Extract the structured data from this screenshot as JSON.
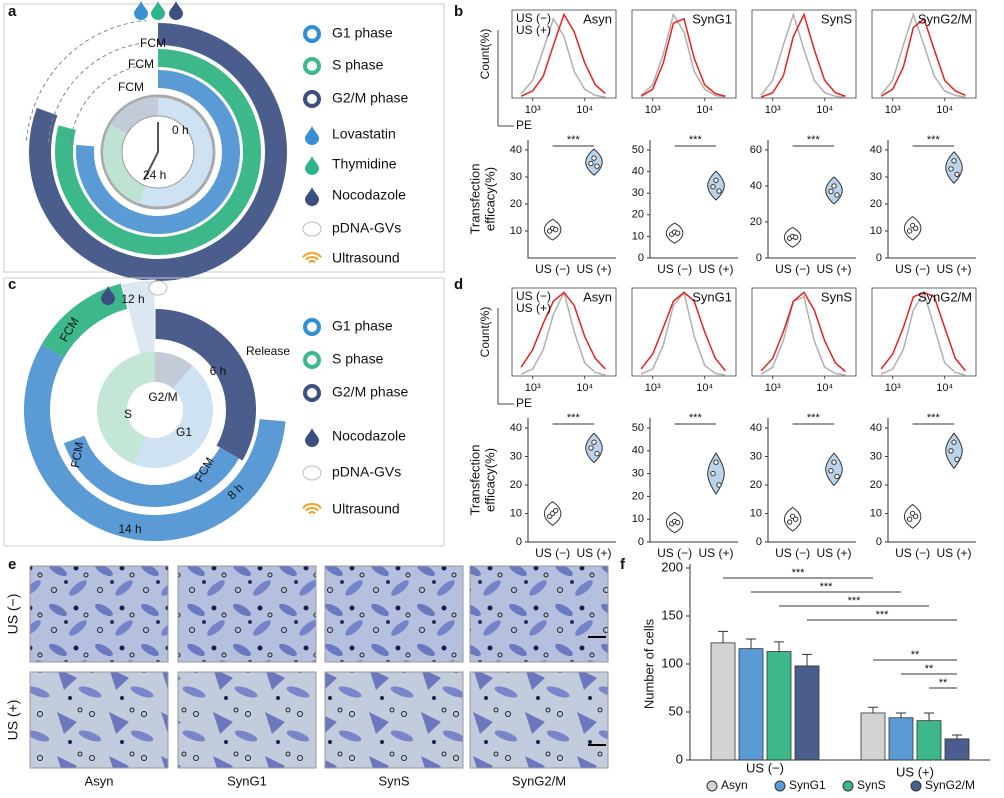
{
  "panel_labels": [
    "a",
    "b",
    "c",
    "d",
    "e",
    "f"
  ],
  "panel_a": {
    "legend": [
      "G1 phase",
      "S phase",
      "G2/M phase",
      "Lovastatin",
      "Thymidine",
      "Nocodazole",
      "pDNA-GVs",
      "Ultrasound"
    ],
    "labels": [
      "FCM",
      "FCM",
      "FCM",
      "0 h",
      "24 h"
    ]
  },
  "panel_c": {
    "legend": [
      "G1 phase",
      "S phase",
      "G2/M phase",
      "Nocodazole",
      "pDNA-GVs",
      "Ultrasound"
    ],
    "labels": [
      "12 h",
      "FCM",
      "Release",
      "6 h",
      "G2/M",
      "S",
      "G1",
      "FCM",
      "FCM",
      "8 h",
      "14 h"
    ]
  },
  "panel_e": {
    "rows": [
      "US (−)",
      "US (+)"
    ],
    "columns": [
      "Asyn",
      "SynG1",
      "SynS",
      "SynG2/M"
    ]
  },
  "chart_data": [
    {
      "type": "histogram",
      "title": "Asyn",
      "ylabel": "Count(%)",
      "xlabel": "PE",
      "xscale": "log",
      "x": [
        600,
        1000,
        1600,
        2500,
        4000,
        6300,
        10000,
        16000,
        25000
      ],
      "xlim": [
        400,
        40000
      ],
      "xticks": [
        {
          "value": 1000,
          "label": "10³"
        },
        {
          "value": 10000,
          "label": "10⁴"
        }
      ],
      "ylim": [
        0,
        100
      ],
      "series": [
        {
          "name": "US (−)",
          "color": "#b0b0b0",
          "values": [
            5,
            20,
            55,
            90,
            70,
            30,
            10,
            3,
            1
          ]
        },
        {
          "name": "US (+)",
          "color": "#e8211d",
          "values": [
            2,
            8,
            25,
            60,
            95,
            75,
            40,
            15,
            5
          ]
        }
      ]
    },
    {
      "type": "histogram",
      "title": "SynG1",
      "xscale": "log",
      "x": [
        600,
        1000,
        1600,
        2500,
        4000,
        6300,
        10000,
        16000,
        25000
      ],
      "xlim": [
        400,
        40000
      ],
      "xticks": [
        {
          "value": 1000,
          "label": "10³"
        },
        {
          "value": 10000,
          "label": "10⁴"
        }
      ],
      "ylim": [
        0,
        100
      ],
      "series": [
        {
          "color": "#b0b0b0",
          "values": [
            3,
            15,
            50,
            95,
            75,
            30,
            10,
            3,
            1
          ]
        },
        {
          "color": "#e8211d",
          "values": [
            2,
            10,
            40,
            85,
            90,
            45,
            15,
            5,
            2
          ]
        }
      ]
    },
    {
      "type": "histogram",
      "title": "SynS",
      "xscale": "log",
      "x": [
        600,
        1000,
        1600,
        2500,
        4000,
        6300,
        10000,
        16000,
        25000
      ],
      "xlim": [
        400,
        40000
      ],
      "xticks": [
        {
          "value": 1000,
          "label": "10³"
        },
        {
          "value": 10000,
          "label": "10⁴"
        }
      ],
      "ylim": [
        0,
        100
      ],
      "series": [
        {
          "color": "#b0b0b0",
          "values": [
            3,
            20,
            60,
            95,
            55,
            20,
            6,
            2,
            1
          ]
        },
        {
          "color": "#e8211d",
          "values": [
            1,
            6,
            25,
            70,
            95,
            55,
            20,
            6,
            2
          ]
        }
      ]
    },
    {
      "type": "histogram",
      "title": "SynG2/M",
      "xscale": "log",
      "x": [
        600,
        1000,
        1600,
        2500,
        4000,
        6300,
        10000,
        16000,
        25000
      ],
      "xlim": [
        400,
        40000
      ],
      "xticks": [
        {
          "value": 1000,
          "label": "10³"
        },
        {
          "value": 10000,
          "label": "10⁴"
        }
      ],
      "ylim": [
        0,
        100
      ],
      "series": [
        {
          "color": "#b0b0b0",
          "values": [
            4,
            20,
            60,
            95,
            60,
            25,
            8,
            3,
            1
          ]
        },
        {
          "color": "#e8211d",
          "values": [
            2,
            10,
            35,
            80,
            90,
            55,
            20,
            8,
            3
          ]
        }
      ]
    },
    {
      "type": "violin",
      "ylabel": [
        "Transfection",
        "efficacy(%)"
      ],
      "categories": [
        "US (−)",
        "US (+)"
      ],
      "colors": [
        "#ffffff",
        "#b9d4ec"
      ],
      "values": [
        [
          10,
          11,
          10.5
        ],
        [
          35,
          37,
          34
        ]
      ],
      "ylim": [
        0,
        40
      ],
      "yticks": [
        10,
        20,
        30,
        40
      ],
      "annotation": "***"
    },
    {
      "type": "violin",
      "categories": [
        "US (−)",
        "US (+)"
      ],
      "colors": [
        "#ffffff",
        "#b9d4ec"
      ],
      "values": [
        [
          11,
          12,
          11.5
        ],
        [
          33,
          36,
          31
        ]
      ],
      "ylim": [
        0,
        50
      ],
      "yticks": [
        0,
        10,
        20,
        30,
        40,
        50
      ],
      "annotation": "***"
    },
    {
      "type": "violin",
      "categories": [
        "US (−)",
        "US (+)"
      ],
      "colors": [
        "#ffffff",
        "#b9d4ec"
      ],
      "values": [
        [
          11,
          12,
          11.5
        ],
        [
          37,
          40,
          35
        ]
      ],
      "ylim": [
        0,
        60
      ],
      "yticks": [
        0,
        20,
        40,
        60
      ],
      "annotation": "***"
    },
    {
      "type": "violin",
      "categories": [
        "US (−)",
        "US (+)"
      ],
      "colors": [
        "#ffffff",
        "#b9d4ec"
      ],
      "values": [
        [
          10,
          12,
          11
        ],
        [
          33,
          36,
          31
        ]
      ],
      "ylim": [
        0,
        40
      ],
      "yticks": [
        0,
        10,
        20,
        30,
        40
      ],
      "annotation": "***"
    },
    {
      "type": "histogram",
      "title": "Asyn",
      "ylabel": "Count(%)",
      "xlabel": "PE",
      "xscale": "log",
      "x": [
        600,
        1000,
        1600,
        2500,
        4000,
        6300,
        10000,
        16000,
        25000
      ],
      "xlim": [
        400,
        40000
      ],
      "xticks": [
        {
          "value": 1000,
          "label": "10³"
        },
        {
          "value": 10000,
          "label": "10⁴"
        }
      ],
      "ylim": [
        0,
        100
      ],
      "series": [
        {
          "name": "US (−)",
          "color": "#b0b0b0",
          "values": [
            2,
            8,
            30,
            70,
            95,
            50,
            15,
            4,
            1
          ]
        },
        {
          "name": "US (+)",
          "color": "#e8211d",
          "values": [
            10,
            30,
            60,
            85,
            95,
            80,
            45,
            20,
            8
          ]
        }
      ]
    },
    {
      "type": "histogram",
      "title": "SynG1",
      "xscale": "log",
      "x": [
        600,
        1000,
        1600,
        2500,
        4000,
        6300,
        10000,
        16000,
        25000
      ],
      "xlim": [
        400,
        40000
      ],
      "xticks": [
        {
          "value": 1000,
          "label": "10³"
        },
        {
          "value": 10000,
          "label": "10⁴"
        }
      ],
      "ylim": [
        0,
        100
      ],
      "series": [
        {
          "color": "#b0b0b0",
          "values": [
            2,
            8,
            35,
            80,
            95,
            45,
            12,
            3,
            1
          ]
        },
        {
          "color": "#e8211d",
          "values": [
            8,
            25,
            55,
            85,
            95,
            85,
            50,
            20,
            6
          ]
        }
      ]
    },
    {
      "type": "histogram",
      "title": "SynS",
      "xscale": "log",
      "x": [
        600,
        1000,
        1600,
        2500,
        4000,
        6300,
        10000,
        16000,
        25000
      ],
      "xlim": [
        400,
        40000
      ],
      "xticks": [
        {
          "value": 1000,
          "label": "10³"
        },
        {
          "value": 10000,
          "label": "10⁴"
        }
      ],
      "ylim": [
        0,
        100
      ],
      "series": [
        {
          "color": "#b0b0b0",
          "values": [
            2,
            10,
            40,
            85,
            90,
            40,
            10,
            3,
            1
          ]
        },
        {
          "color": "#e8211d",
          "values": [
            6,
            20,
            50,
            85,
            95,
            75,
            40,
            15,
            5
          ]
        }
      ]
    },
    {
      "type": "histogram",
      "title": "SynG2/M",
      "xscale": "log",
      "x": [
        600,
        1000,
        1600,
        2500,
        4000,
        6300,
        10000,
        16000,
        25000
      ],
      "xlim": [
        400,
        40000
      ],
      "xticks": [
        {
          "value": 1000,
          "label": "10³"
        },
        {
          "value": 10000,
          "label": "10⁴"
        }
      ],
      "ylim": [
        0,
        100
      ],
      "series": [
        {
          "color": "#b0b0b0",
          "values": [
            2,
            8,
            30,
            75,
            95,
            55,
            15,
            4,
            1
          ]
        },
        {
          "color": "#e8211d",
          "values": [
            8,
            25,
            55,
            90,
            95,
            90,
            55,
            20,
            6
          ]
        }
      ]
    },
    {
      "type": "violin",
      "ylabel": [
        "Transfection",
        "efficacy(%)"
      ],
      "categories": [
        "US (−)",
        "US (+)"
      ],
      "colors": [
        "#ffffff",
        "#b9d4ec"
      ],
      "values": [
        [
          9,
          10,
          11
        ],
        [
          33,
          35,
          31
        ]
      ],
      "ylim": [
        0,
        40
      ],
      "yticks": [
        0,
        10,
        20,
        30,
        40
      ],
      "annotation": "***"
    },
    {
      "type": "violin",
      "categories": [
        "US (−)",
        "US (+)"
      ],
      "colors": [
        "#ffffff",
        "#b9d4ec"
      ],
      "values": [
        [
          8,
          9,
          8.5
        ],
        [
          30,
          35,
          25
        ]
      ],
      "ylim": [
        0,
        50
      ],
      "yticks": [
        0,
        10,
        20,
        30,
        40,
        50
      ],
      "annotation": "***"
    },
    {
      "type": "violin",
      "categories": [
        "US (−)",
        "US (+)"
      ],
      "colors": [
        "#ffffff",
        "#b9d4ec"
      ],
      "values": [
        [
          7,
          9,
          8
        ],
        [
          25,
          28,
          23
        ]
      ],
      "ylim": [
        0,
        40
      ],
      "yticks": [
        0,
        10,
        20,
        30,
        40
      ],
      "annotation": "***"
    },
    {
      "type": "violin",
      "categories": [
        "US (−)",
        "US (+)"
      ],
      "colors": [
        "#ffffff",
        "#b9d4ec"
      ],
      "values": [
        [
          8,
          10,
          9
        ],
        [
          32,
          35,
          29
        ]
      ],
      "ylim": [
        0,
        40
      ],
      "yticks": [
        0,
        10,
        20,
        30,
        40
      ],
      "annotation": "***"
    },
    {
      "type": "bar",
      "ylabel": "Number of cells",
      "categories": [
        "US (−)",
        "US (+)"
      ],
      "ylim": [
        0,
        200
      ],
      "yticks": [
        0,
        50,
        100,
        150,
        200
      ],
      "series": [
        {
          "name": "Asyn",
          "color": "#d3d3d3",
          "values": [
            122,
            49
          ],
          "errors": [
            12,
            6
          ]
        },
        {
          "name": "SynG1",
          "color": "#5b9bd5",
          "values": [
            116,
            44
          ],
          "errors": [
            10,
            5
          ]
        },
        {
          "name": "SynS",
          "color": "#3cb88a",
          "values": [
            113,
            41
          ],
          "errors": [
            10,
            8
          ]
        },
        {
          "name": "SynG2/M",
          "color": "#4a5d8c",
          "values": [
            98,
            22
          ],
          "errors": [
            12,
            4
          ]
        }
      ],
      "annotations": [
        "***",
        "***",
        "***",
        "***",
        "**",
        "**",
        "**"
      ]
    }
  ]
}
